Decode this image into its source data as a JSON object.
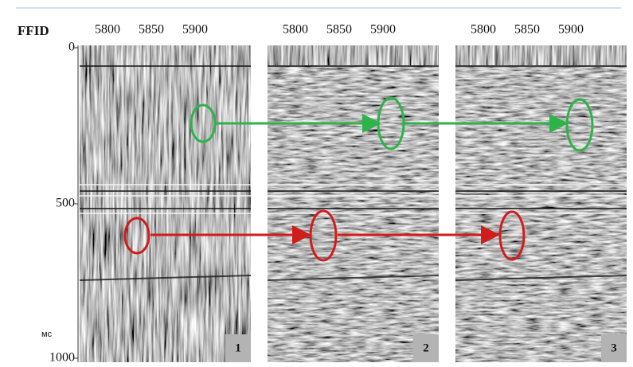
{
  "axes": {
    "x_label": "FFID",
    "y_ticks": [
      "0",
      "500",
      "1000"
    ],
    "y_unit": "мс"
  },
  "panels": [
    {
      "x_ticks": [
        "5800",
        "5850",
        "5900"
      ],
      "number": "1"
    },
    {
      "x_ticks": [
        "5800",
        "5850",
        "5900"
      ],
      "number": "2"
    },
    {
      "x_ticks": [
        "5800",
        "5850",
        "5900"
      ],
      "number": "3"
    }
  ]
}
